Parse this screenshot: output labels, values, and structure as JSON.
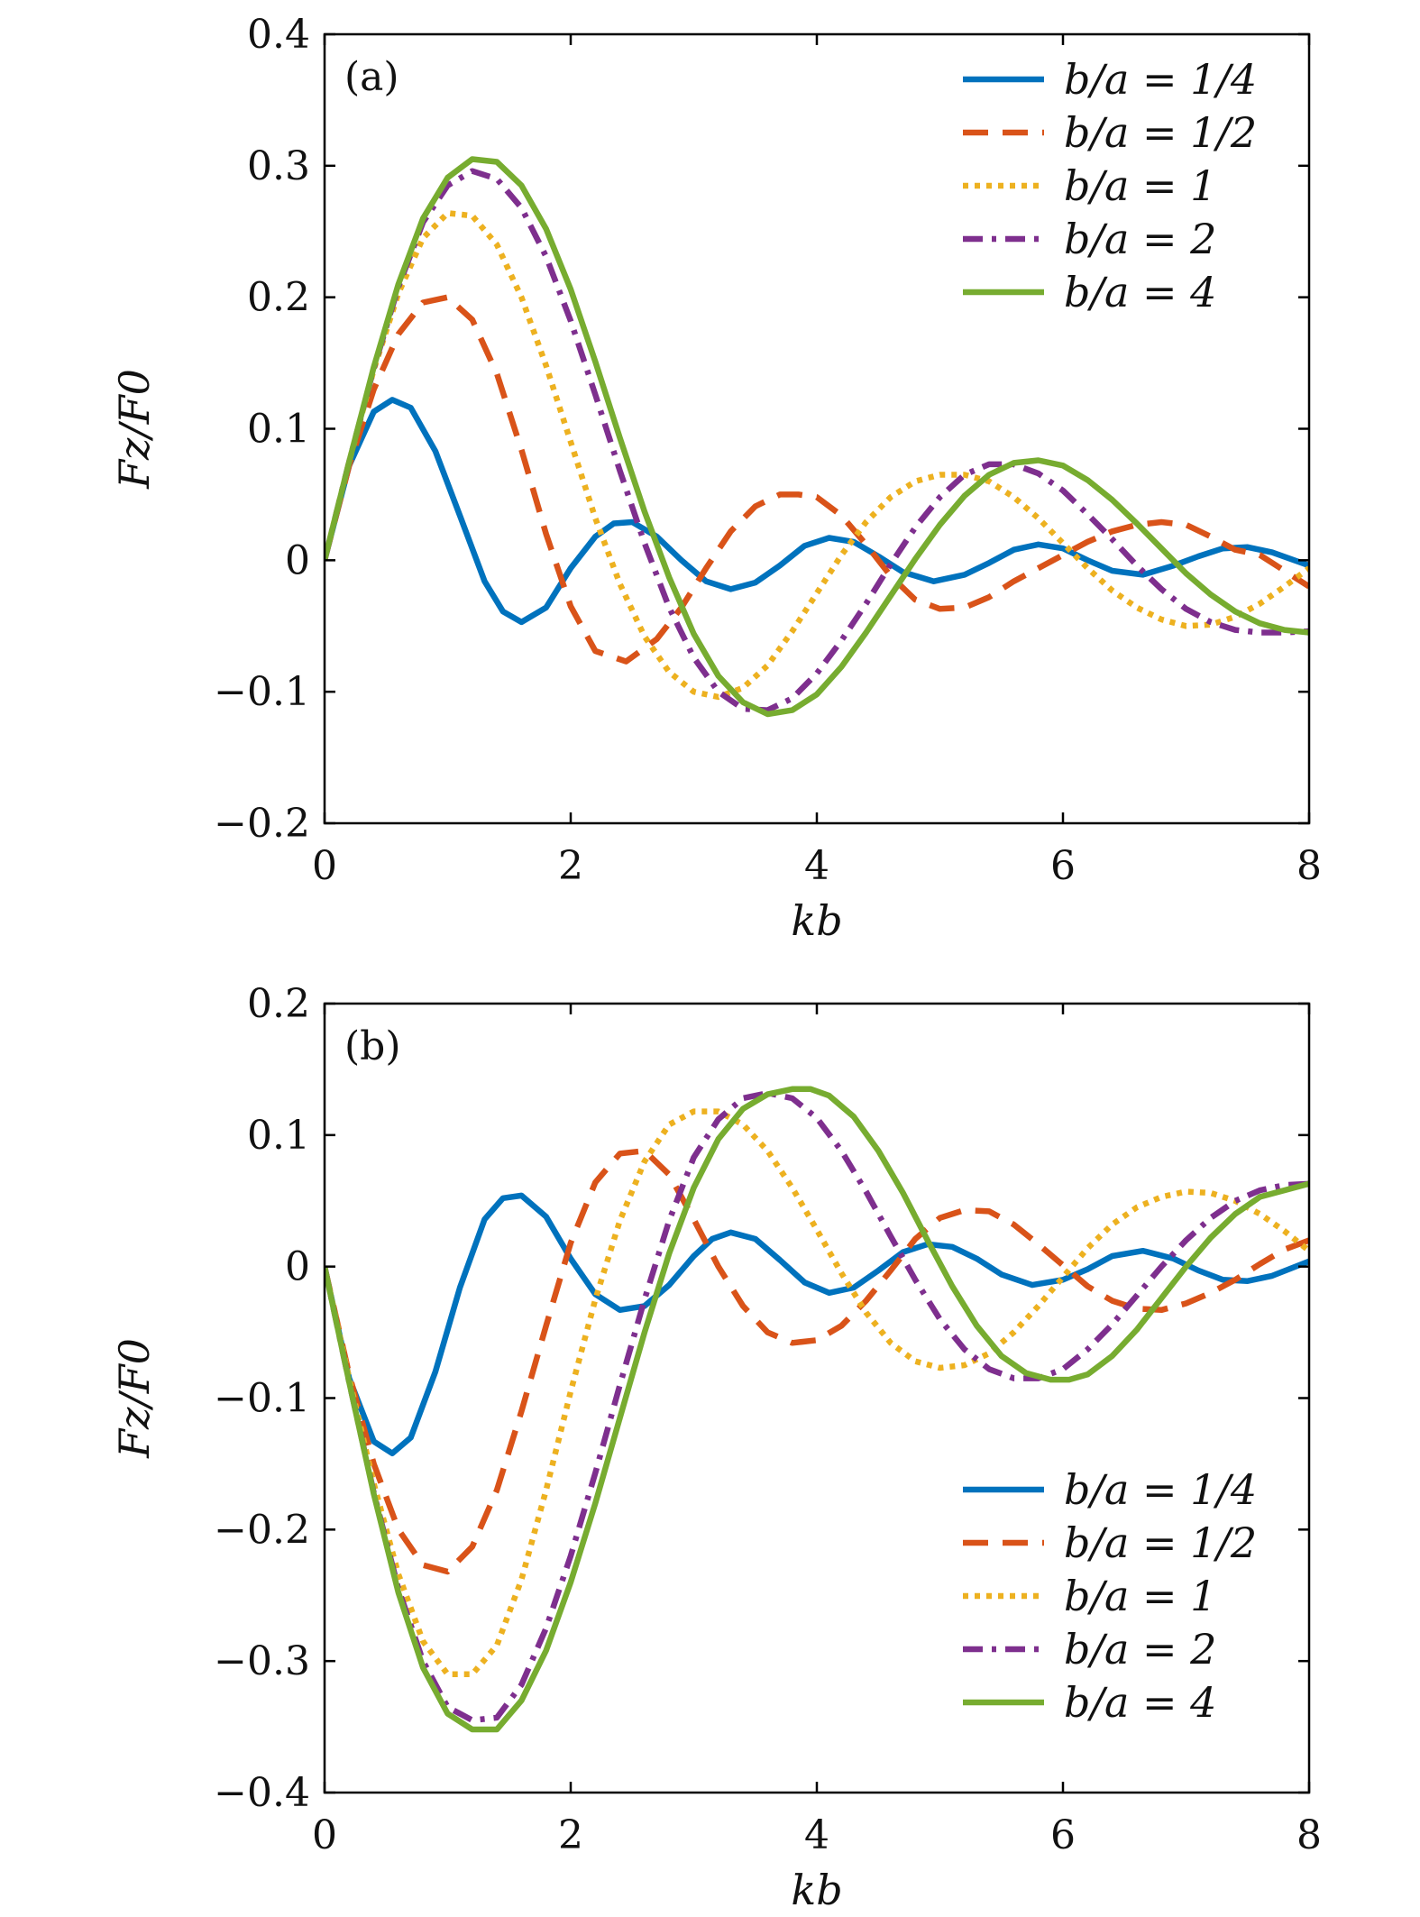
{
  "chart_data": [
    {
      "type": "line",
      "panel_label": "(a)",
      "xlabel": "kb",
      "ylabel": "Fz/F0",
      "xlim": [
        0,
        8
      ],
      "ylim": [
        -0.2,
        0.4
      ],
      "xticks": [
        "0",
        "2",
        "4",
        "6",
        "8"
      ],
      "yticks": [
        "−0.2",
        "−0.1",
        "0",
        "0.1",
        "0.2",
        "0.3",
        "0.4"
      ],
      "legend_position": "top-right",
      "grid": false,
      "series": [
        {
          "name": "b/a = 1/4",
          "color": "#0072BD",
          "dash": "solid",
          "x": [
            0,
            0.2,
            0.4,
            0.55,
            0.7,
            0.9,
            1.1,
            1.3,
            1.45,
            1.6,
            1.8,
            2.0,
            2.2,
            2.35,
            2.5,
            2.7,
            2.9,
            3.1,
            3.3,
            3.5,
            3.7,
            3.9,
            4.1,
            4.3,
            4.5,
            4.7,
            4.95,
            5.2,
            5.4,
            5.6,
            5.8,
            6.0,
            6.2,
            6.4,
            6.65,
            6.9,
            7.1,
            7.3,
            7.5,
            7.7,
            8.0
          ],
          "y": [
            0,
            0.072,
            0.113,
            0.122,
            0.116,
            0.083,
            0.034,
            -0.016,
            -0.039,
            -0.047,
            -0.036,
            -0.006,
            0.018,
            0.028,
            0.029,
            0.018,
            0.0,
            -0.016,
            -0.022,
            -0.017,
            -0.004,
            0.011,
            0.017,
            0.014,
            0.003,
            -0.009,
            -0.016,
            -0.011,
            -0.002,
            0.008,
            0.012,
            0.009,
            0.0,
            -0.008,
            -0.011,
            -0.004,
            0.003,
            0.009,
            0.01,
            0.006,
            -0.004
          ]
        },
        {
          "name": "b/a = 1/2",
          "color": "#D95319",
          "dash": "dashed",
          "x": [
            0,
            0.2,
            0.4,
            0.6,
            0.8,
            1.0,
            1.2,
            1.4,
            1.6,
            1.8,
            2.0,
            2.2,
            2.45,
            2.7,
            2.9,
            3.1,
            3.3,
            3.5,
            3.7,
            3.85,
            4.0,
            4.2,
            4.4,
            4.6,
            4.8,
            5.0,
            5.2,
            5.4,
            5.6,
            5.8,
            6.0,
            6.2,
            6.4,
            6.6,
            6.8,
            7.0,
            7.2,
            7.4,
            7.6,
            7.8,
            8.0
          ],
          "y": [
            0,
            0.072,
            0.13,
            0.172,
            0.196,
            0.2,
            0.183,
            0.142,
            0.084,
            0.02,
            -0.035,
            -0.069,
            -0.077,
            -0.06,
            -0.036,
            -0.006,
            0.022,
            0.041,
            0.05,
            0.05,
            0.048,
            0.034,
            0.012,
            -0.012,
            -0.03,
            -0.037,
            -0.036,
            -0.028,
            -0.016,
            -0.006,
            0.004,
            0.014,
            0.022,
            0.027,
            0.029,
            0.027,
            0.018,
            0.008,
            0.004,
            -0.008,
            -0.02
          ]
        },
        {
          "name": "b/a = 1",
          "color": "#EDB120",
          "dash": "dotted",
          "x": [
            0,
            0.2,
            0.4,
            0.6,
            0.8,
            1.0,
            1.2,
            1.4,
            1.6,
            1.8,
            2.0,
            2.2,
            2.4,
            2.6,
            2.8,
            3.0,
            3.2,
            3.4,
            3.6,
            3.8,
            4.0,
            4.2,
            4.4,
            4.6,
            4.8,
            5.0,
            5.2,
            5.4,
            5.6,
            5.8,
            6.0,
            6.2,
            6.4,
            6.6,
            6.8,
            7.0,
            7.2,
            7.4,
            7.6,
            7.8,
            8.0
          ],
          "y": [
            0,
            0.075,
            0.145,
            0.203,
            0.245,
            0.264,
            0.262,
            0.24,
            0.2,
            0.148,
            0.09,
            0.032,
            -0.018,
            -0.058,
            -0.085,
            -0.1,
            -0.104,
            -0.097,
            -0.08,
            -0.054,
            -0.025,
            0.004,
            0.029,
            0.048,
            0.06,
            0.065,
            0.065,
            0.06,
            0.048,
            0.032,
            0.013,
            -0.006,
            -0.023,
            -0.036,
            -0.045,
            -0.05,
            -0.049,
            -0.043,
            -0.033,
            -0.02,
            -0.006
          ]
        },
        {
          "name": "b/a = 2",
          "color": "#7E2F8E",
          "dash": "dash-dot",
          "x": [
            0,
            0.2,
            0.4,
            0.6,
            0.8,
            1.0,
            1.2,
            1.4,
            1.6,
            1.8,
            2.0,
            2.2,
            2.4,
            2.6,
            2.8,
            3.0,
            3.2,
            3.4,
            3.6,
            3.8,
            4.0,
            4.2,
            4.4,
            4.6,
            4.8,
            5.0,
            5.2,
            5.4,
            5.6,
            5.8,
            6.0,
            6.2,
            6.4,
            6.6,
            6.8,
            7.0,
            7.2,
            7.4,
            7.6,
            7.8,
            8.0
          ],
          "y": [
            0,
            0.075,
            0.146,
            0.208,
            0.257,
            0.285,
            0.296,
            0.29,
            0.268,
            0.231,
            0.182,
            0.126,
            0.068,
            0.013,
            -0.036,
            -0.074,
            -0.1,
            -0.113,
            -0.114,
            -0.105,
            -0.086,
            -0.061,
            -0.033,
            -0.003,
            0.025,
            0.048,
            0.065,
            0.073,
            0.073,
            0.066,
            0.053,
            0.035,
            0.016,
            -0.004,
            -0.022,
            -0.037,
            -0.047,
            -0.053,
            -0.055,
            -0.055,
            -0.054
          ]
        },
        {
          "name": "b/a = 4",
          "color": "#77AC30",
          "dash": "solid",
          "x": [
            0,
            0.2,
            0.4,
            0.6,
            0.8,
            1.0,
            1.2,
            1.4,
            1.6,
            1.8,
            2.0,
            2.2,
            2.4,
            2.6,
            2.8,
            3.0,
            3.2,
            3.4,
            3.6,
            3.8,
            4.0,
            4.2,
            4.4,
            4.6,
            4.8,
            5.0,
            5.2,
            5.4,
            5.6,
            5.8,
            6.0,
            6.2,
            6.4,
            6.6,
            6.8,
            7.0,
            7.2,
            7.4,
            7.6,
            7.8,
            8.0
          ],
          "y": [
            0,
            0.075,
            0.147,
            0.21,
            0.26,
            0.291,
            0.305,
            0.303,
            0.285,
            0.252,
            0.206,
            0.151,
            0.093,
            0.037,
            -0.013,
            -0.056,
            -0.088,
            -0.108,
            -0.117,
            -0.114,
            -0.102,
            -0.081,
            -0.055,
            -0.027,
            0.001,
            0.027,
            0.049,
            0.065,
            0.074,
            0.076,
            0.072,
            0.061,
            0.046,
            0.028,
            0.009,
            -0.01,
            -0.026,
            -0.039,
            -0.048,
            -0.053,
            -0.055
          ]
        }
      ]
    },
    {
      "type": "line",
      "panel_label": "(b)",
      "xlabel": "kb",
      "ylabel": "Fz/F0",
      "xlim": [
        0,
        8
      ],
      "ylim": [
        -0.4,
        0.2
      ],
      "xticks": [
        "0",
        "2",
        "4",
        "6",
        "8"
      ],
      "yticks": [
        "−0.4",
        "−0.3",
        "−0.2",
        "−0.1",
        "0",
        "0.1",
        "0.2"
      ],
      "legend_position": "bottom-right",
      "grid": false,
      "series": [
        {
          "name": "b/a = 1/4",
          "color": "#0072BD",
          "dash": "solid",
          "x": [
            0,
            0.2,
            0.4,
            0.55,
            0.7,
            0.9,
            1.1,
            1.3,
            1.45,
            1.6,
            1.8,
            2.0,
            2.2,
            2.4,
            2.6,
            2.8,
            3.0,
            3.15,
            3.3,
            3.5,
            3.7,
            3.9,
            4.1,
            4.3,
            4.5,
            4.7,
            4.9,
            5.1,
            5.3,
            5.5,
            5.75,
            6.0,
            6.2,
            6.4,
            6.65,
            6.9,
            7.1,
            7.3,
            7.5,
            7.7,
            8.0
          ],
          "y": [
            0,
            -0.085,
            -0.133,
            -0.142,
            -0.13,
            -0.08,
            -0.016,
            0.036,
            0.052,
            0.054,
            0.038,
            0.006,
            -0.021,
            -0.033,
            -0.03,
            -0.014,
            0.008,
            0.021,
            0.026,
            0.021,
            0.005,
            -0.012,
            -0.02,
            -0.016,
            -0.003,
            0.011,
            0.017,
            0.015,
            0.006,
            -0.006,
            -0.014,
            -0.01,
            -0.002,
            0.008,
            0.012,
            0.006,
            -0.003,
            -0.01,
            -0.011,
            -0.007,
            0.004
          ]
        },
        {
          "name": "b/a = 1/2",
          "color": "#D95319",
          "dash": "dashed",
          "x": [
            0,
            0.2,
            0.4,
            0.6,
            0.8,
            1.0,
            1.2,
            1.4,
            1.6,
            1.8,
            2.0,
            2.2,
            2.4,
            2.6,
            2.8,
            3.0,
            3.2,
            3.4,
            3.6,
            3.8,
            4.0,
            4.2,
            4.4,
            4.6,
            4.8,
            5.0,
            5.2,
            5.4,
            5.6,
            5.8,
            6.0,
            6.2,
            6.4,
            6.6,
            6.8,
            7.0,
            7.2,
            7.4,
            7.6,
            7.8,
            8.0
          ],
          "y": [
            0,
            -0.082,
            -0.15,
            -0.2,
            -0.227,
            -0.232,
            -0.213,
            -0.17,
            -0.11,
            -0.045,
            0.018,
            0.064,
            0.086,
            0.088,
            0.07,
            0.036,
            0.0,
            -0.03,
            -0.05,
            -0.058,
            -0.056,
            -0.045,
            -0.026,
            -0.003,
            0.021,
            0.037,
            0.043,
            0.042,
            0.032,
            0.017,
            0.001,
            -0.015,
            -0.026,
            -0.032,
            -0.033,
            -0.028,
            -0.02,
            -0.01,
            0.002,
            0.013,
            0.02
          ]
        },
        {
          "name": "b/a = 1",
          "color": "#EDB120",
          "dash": "dotted",
          "x": [
            0,
            0.2,
            0.4,
            0.6,
            0.8,
            1.0,
            1.2,
            1.4,
            1.6,
            1.8,
            2.0,
            2.2,
            2.4,
            2.6,
            2.8,
            3.0,
            3.2,
            3.4,
            3.6,
            3.8,
            4.0,
            4.2,
            4.4,
            4.6,
            4.8,
            5.0,
            5.2,
            5.4,
            5.6,
            5.8,
            6.0,
            6.2,
            6.4,
            6.6,
            6.8,
            7.0,
            7.2,
            7.4,
            7.6,
            7.8,
            8.0
          ],
          "y": [
            0,
            -0.085,
            -0.165,
            -0.234,
            -0.285,
            -0.31,
            -0.31,
            -0.288,
            -0.238,
            -0.17,
            -0.095,
            -0.025,
            0.035,
            0.08,
            0.108,
            0.118,
            0.118,
            0.108,
            0.088,
            0.06,
            0.028,
            -0.005,
            -0.035,
            -0.058,
            -0.072,
            -0.077,
            -0.075,
            -0.066,
            -0.05,
            -0.03,
            -0.008,
            0.014,
            0.032,
            0.045,
            0.053,
            0.057,
            0.056,
            0.05,
            0.04,
            0.027,
            0.012
          ]
        },
        {
          "name": "b/a = 2",
          "color": "#7E2F8E",
          "dash": "dash-dot",
          "x": [
            0,
            0.2,
            0.4,
            0.6,
            0.8,
            1.0,
            1.2,
            1.4,
            1.6,
            1.8,
            2.0,
            2.2,
            2.4,
            2.6,
            2.8,
            3.0,
            3.2,
            3.4,
            3.6,
            3.8,
            4.0,
            4.2,
            4.4,
            4.6,
            4.8,
            5.0,
            5.2,
            5.4,
            5.6,
            5.8,
            6.0,
            6.2,
            6.4,
            6.6,
            6.8,
            7.0,
            7.2,
            7.4,
            7.6,
            7.8,
            8.0
          ],
          "y": [
            0,
            -0.088,
            -0.172,
            -0.245,
            -0.3,
            -0.335,
            -0.345,
            -0.343,
            -0.318,
            -0.275,
            -0.22,
            -0.157,
            -0.09,
            -0.025,
            0.035,
            0.083,
            0.112,
            0.128,
            0.132,
            0.128,
            0.113,
            0.088,
            0.057,
            0.023,
            -0.01,
            -0.04,
            -0.063,
            -0.078,
            -0.085,
            -0.085,
            -0.078,
            -0.063,
            -0.044,
            -0.022,
            0.0,
            0.02,
            0.037,
            0.05,
            0.058,
            0.062,
            0.063
          ]
        },
        {
          "name": "b/a = 4",
          "color": "#77AC30",
          "dash": "solid",
          "x": [
            0,
            0.2,
            0.4,
            0.6,
            0.8,
            1.0,
            1.2,
            1.4,
            1.6,
            1.8,
            2.0,
            2.2,
            2.4,
            2.6,
            2.8,
            3.0,
            3.2,
            3.4,
            3.6,
            3.8,
            3.95,
            4.1,
            4.3,
            4.5,
            4.7,
            4.9,
            5.1,
            5.3,
            5.5,
            5.7,
            5.9,
            6.05,
            6.2,
            6.4,
            6.6,
            6.8,
            7.0,
            7.2,
            7.4,
            7.6,
            8.0
          ],
          "y": [
            0,
            -0.088,
            -0.173,
            -0.248,
            -0.305,
            -0.34,
            -0.352,
            -0.352,
            -0.33,
            -0.292,
            -0.24,
            -0.18,
            -0.115,
            -0.05,
            0.01,
            0.06,
            0.097,
            0.12,
            0.131,
            0.135,
            0.135,
            0.13,
            0.114,
            0.088,
            0.056,
            0.02,
            -0.015,
            -0.045,
            -0.068,
            -0.081,
            -0.086,
            -0.086,
            -0.082,
            -0.068,
            -0.048,
            -0.024,
            0.0,
            0.022,
            0.04,
            0.053,
            0.063
          ]
        }
      ]
    }
  ]
}
